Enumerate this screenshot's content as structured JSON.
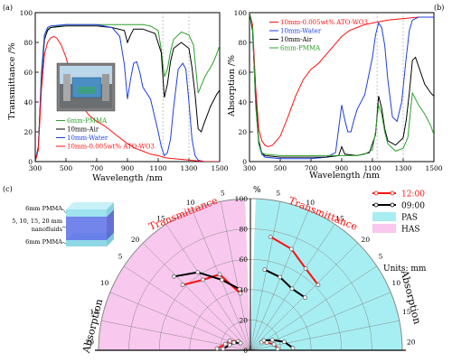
{
  "panels": {
    "a": "(a)",
    "b": "(b)",
    "c": "(c)"
  },
  "colors": {
    "green": "#2ca02c",
    "black": "#000000",
    "blue": "#1f3fe0",
    "red": "#ff1010",
    "pink": "#f9c8ee",
    "cyan": "#a7eef2"
  },
  "chart_data": [
    {
      "type": "line",
      "panel": "(a)",
      "xlabel": "Wavelength /nm",
      "ylabel": "Transmittance /%",
      "xlim": [
        300,
        1500
      ],
      "ylim": [
        0,
        100
      ],
      "xticks": [
        300,
        500,
        700,
        900,
        1100,
        1300,
        1500
      ],
      "yticks": [
        0,
        20,
        40,
        60,
        80,
        100
      ],
      "legend": [
        "6mm-PMMA",
        "10mm-Air",
        "10mm-Water",
        "10mm-0.005wt% ATO-WO3"
      ],
      "series": [
        {
          "name": "6mm-PMMA",
          "color": "#2ca02c",
          "x": [
            300,
            320,
            340,
            360,
            380,
            400,
            450,
            500,
            600,
            700,
            800,
            900,
            1000,
            1050,
            1100,
            1120,
            1140,
            1160,
            1180,
            1200,
            1250,
            1300,
            1330,
            1360,
            1400,
            1420,
            1440,
            1460,
            1480,
            1500
          ],
          "y": [
            0,
            8,
            60,
            85,
            89,
            90,
            91,
            92,
            92,
            92,
            92,
            92,
            92,
            91,
            88,
            75,
            57,
            62,
            74,
            82,
            87,
            85,
            78,
            46,
            56,
            60,
            63,
            67,
            72,
            78
          ]
        },
        {
          "name": "10mm-Air",
          "color": "#000000",
          "x": [
            300,
            320,
            340,
            360,
            380,
            400,
            500,
            600,
            700,
            800,
            880,
            900,
            920,
            940,
            1000,
            1080,
            1120,
            1140,
            1160,
            1180,
            1200,
            1250,
            1300,
            1320,
            1340,
            1360,
            1380,
            1400,
            1440,
            1480,
            1500
          ],
          "y": [
            0,
            10,
            55,
            82,
            88,
            90,
            91,
            91,
            91,
            90,
            88,
            80,
            85,
            89,
            89,
            86,
            73,
            43,
            52,
            67,
            76,
            80,
            76,
            63,
            45,
            22,
            20,
            26,
            37,
            45,
            48
          ]
        },
        {
          "name": "10mm-Water",
          "color": "#1f3fe0",
          "x": [
            300,
            320,
            340,
            360,
            380,
            400,
            500,
            600,
            700,
            800,
            850,
            880,
            900,
            920,
            940,
            960,
            980,
            1000,
            1050,
            1100,
            1120,
            1140,
            1160,
            1180,
            1200,
            1230,
            1260,
            1280,
            1300,
            1320,
            1340,
            1360,
            1400,
            1450,
            1500
          ],
          "y": [
            0,
            10,
            56,
            85,
            90,
            91,
            92,
            92,
            92,
            90,
            84,
            65,
            42,
            55,
            66,
            67,
            60,
            50,
            42,
            20,
            10,
            4,
            6,
            15,
            36,
            62,
            66,
            62,
            40,
            15,
            4,
            1,
            0,
            0,
            0
          ]
        },
        {
          "name": "10mm-0.005wt% ATO-WO3",
          "color": "#ff1010",
          "x": [
            300,
            320,
            340,
            360,
            380,
            400,
            420,
            440,
            470,
            500,
            530,
            560,
            600,
            650,
            700,
            750,
            800,
            850,
            900,
            950,
            1000,
            1050,
            1100,
            1150,
            1200,
            1250,
            1300,
            1400,
            1500
          ],
          "y": [
            0,
            8,
            48,
            72,
            80,
            83,
            84,
            83,
            78,
            70,
            58,
            48,
            38,
            31,
            27,
            24,
            20,
            16,
            12,
            9,
            7,
            5,
            4,
            2.5,
            2,
            1.5,
            1,
            0,
            0
          ]
        }
      ]
    },
    {
      "type": "line",
      "panel": "(b)",
      "xlabel": "Wavelength /nm",
      "ylabel": "Absorption /%",
      "xlim": [
        300,
        1500
      ],
      "ylim": [
        0,
        100
      ],
      "xticks": [
        300,
        500,
        700,
        900,
        1100,
        1300,
        1500
      ],
      "yticks": [
        0,
        20,
        40,
        60,
        80,
        100
      ],
      "legend": [
        "10mm-0.005wt% ATO-WO3",
        "10mm-Water",
        "10mm-Air",
        "6mm-PMMA"
      ],
      "series": [
        {
          "name": "10mm-0.005wt% ATO-WO3",
          "color": "#ff1010",
          "x": [
            300,
            320,
            340,
            360,
            380,
            400,
            420,
            450,
            500,
            550,
            600,
            650,
            700,
            750,
            800,
            850,
            900,
            950,
            1000,
            1050,
            1100,
            1150,
            1200,
            1300,
            1400,
            1500
          ],
          "y": [
            100,
            92,
            50,
            22,
            14,
            11,
            10,
            11,
            17,
            30,
            44,
            55,
            62,
            66,
            72,
            78,
            84,
            88,
            90,
            92,
            93,
            94,
            95,
            96,
            97,
            97
          ]
        },
        {
          "name": "10mm-Water",
          "color": "#1f3fe0",
          "x": [
            300,
            320,
            340,
            360,
            380,
            400,
            500,
            600,
            700,
            800,
            860,
            880,
            900,
            920,
            940,
            960,
            980,
            1000,
            1050,
            1100,
            1120,
            1140,
            1160,
            1180,
            1200,
            1230,
            1260,
            1290,
            1320,
            1340,
            1360,
            1400,
            1450,
            1500
          ],
          "y": [
            100,
            88,
            40,
            12,
            5,
            3,
            2,
            2,
            2,
            3,
            6,
            22,
            38,
            28,
            20,
            20,
            28,
            35,
            45,
            70,
            85,
            93,
            90,
            78,
            55,
            30,
            27,
            40,
            70,
            88,
            95,
            97,
            97,
            97
          ]
        },
        {
          "name": "10mm-Air",
          "color": "#000000",
          "x": [
            300,
            320,
            340,
            360,
            380,
            400,
            500,
            600,
            700,
            800,
            880,
            900,
            920,
            1000,
            1080,
            1120,
            1140,
            1160,
            1180,
            1200,
            1250,
            1300,
            1320,
            1340,
            1360,
            1380,
            1400,
            1440,
            1480,
            1500
          ],
          "y": [
            100,
            88,
            42,
            14,
            6,
            4,
            3,
            3,
            3,
            3,
            4,
            10,
            5,
            4,
            6,
            18,
            44,
            36,
            22,
            14,
            11,
            16,
            28,
            46,
            68,
            70,
            64,
            52,
            46,
            44
          ]
        },
        {
          "name": "6mm-PMMA",
          "color": "#2ca02c",
          "x": [
            300,
            320,
            340,
            360,
            380,
            400,
            500,
            600,
            700,
            800,
            900,
            1000,
            1050,
            1100,
            1120,
            1140,
            1160,
            1180,
            1200,
            1250,
            1300,
            1330,
            1360,
            1400,
            1420,
            1440,
            1460,
            1480,
            1500
          ],
          "y": [
            100,
            90,
            38,
            12,
            6,
            5,
            4,
            4,
            4,
            4,
            4,
            4,
            5,
            8,
            20,
            38,
            32,
            20,
            12,
            7,
            9,
            16,
            46,
            38,
            35,
            32,
            28,
            24,
            18
          ]
        }
      ]
    },
    {
      "type": "polar",
      "panel": "(c)",
      "radial_unit": "%",
      "radial_ticks": [
        0,
        20,
        40,
        60,
        80,
        100
      ],
      "angular_ticks": [
        5,
        10,
        15,
        20
      ],
      "left_upper_label": "Transmittance",
      "left_lower_label": "Absorption",
      "right_upper_label": "Transmittance",
      "right_lower_label": "Absorption",
      "units_note": "Units: mm",
      "legend": [
        "12:00",
        "09:00",
        "PAS",
        "HAS"
      ],
      "series": [
        {
          "name": "12:00",
          "color": "#ff1010",
          "pas_transmittance": [
            76,
            72,
            65,
            62
          ],
          "pas_absorption": [
            9,
            12,
            16,
            18
          ],
          "has_transmittance": [
            38,
            54,
            56,
            62
          ],
          "has_absorption": [
            10,
            15,
            17,
            22
          ]
        },
        {
          "name": "09:00",
          "color": "#000000",
          "pas_transmittance": [
            54,
            52,
            49,
            50
          ],
          "pas_absorption": [
            11,
            16,
            23,
            28
          ],
          "has_transmittance": [
            41,
            50,
            62,
            70
          ],
          "has_absorption": [
            8,
            12,
            14,
            18
          ]
        }
      ]
    }
  ],
  "inset": {
    "layers": [
      "6mm PMMA",
      "5, 10, 15, 20 mm",
      "nanofluids",
      "6mm PMMA"
    ]
  }
}
